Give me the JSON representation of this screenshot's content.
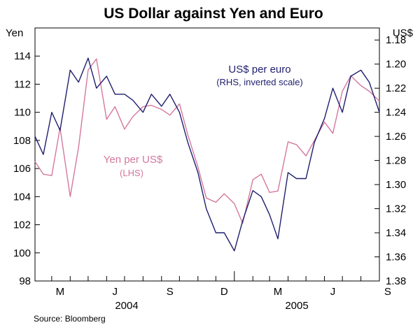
{
  "chart_data": {
    "type": "line",
    "title": "US Dollar against Yen and Euro",
    "source": "Source: Bloomberg",
    "left_axis": {
      "unit": "Yen",
      "min": 98,
      "max": 116,
      "ticks": [
        98,
        100,
        102,
        104,
        106,
        108,
        110,
        112,
        114
      ]
    },
    "right_axis": {
      "unit": "US$",
      "inverted": true,
      "min": 1.17,
      "max": 1.38,
      "ticks": [
        1.18,
        1.2,
        1.22,
        1.24,
        1.26,
        1.28,
        1.3,
        1.32,
        1.34,
        1.36,
        1.38
      ]
    },
    "x_axis": {
      "months": [
        "M",
        "J",
        "S",
        "D",
        "M",
        "J",
        "S"
      ],
      "years": [
        "2004",
        "2005"
      ]
    },
    "grid": false,
    "colors": {
      "yen": "#d4789e",
      "euro": "#1f1f6e"
    },
    "series": [
      {
        "label_main": "Yen per US$",
        "label_sub": "(LHS)",
        "axis": "left",
        "color": "#d4789e",
        "x": [
          "2004-02-02",
          "2004-02-16",
          "2004-03-01",
          "2004-03-15",
          "2004-04-01",
          "2004-04-15",
          "2004-05-01",
          "2004-05-15",
          "2004-06-01",
          "2004-06-15",
          "2004-07-01",
          "2004-07-15",
          "2004-08-01",
          "2004-08-15",
          "2004-09-01",
          "2004-09-15",
          "2004-10-01",
          "2004-10-15",
          "2004-11-01",
          "2004-11-15",
          "2004-12-01",
          "2004-12-15",
          "2005-01-01",
          "2005-01-15",
          "2005-02-01",
          "2005-02-15",
          "2005-03-01",
          "2005-03-15",
          "2005-04-01",
          "2005-04-15",
          "2005-05-01",
          "2005-05-15",
          "2005-06-01",
          "2005-06-15",
          "2005-07-01",
          "2005-07-15",
          "2005-08-01",
          "2005-08-15",
          "2005-09-01"
        ],
        "values": [
          106.5,
          105.6,
          105.5,
          108.9,
          104.0,
          107.5,
          113.0,
          113.8,
          109.5,
          110.4,
          108.8,
          109.7,
          110.4,
          110.5,
          110.2,
          109.8,
          110.6,
          108.4,
          106.1,
          103.9,
          103.6,
          104.2,
          103.5,
          102.1,
          105.2,
          105.6,
          104.3,
          104.4,
          107.9,
          107.7,
          106.9,
          108.0,
          109.3,
          108.5,
          111.5,
          112.6,
          111.9,
          111.5,
          110.8
        ]
      },
      {
        "label_main": "US$ per euro",
        "label_sub": "(RHS, inverted scale)",
        "axis": "right",
        "color": "#1f1f6e",
        "x": [
          "2004-02-02",
          "2004-02-16",
          "2004-03-01",
          "2004-03-15",
          "2004-04-01",
          "2004-04-15",
          "2004-05-01",
          "2004-05-15",
          "2004-06-01",
          "2004-06-15",
          "2004-07-01",
          "2004-07-15",
          "2004-08-01",
          "2004-08-15",
          "2004-09-01",
          "2004-09-15",
          "2004-10-01",
          "2004-10-15",
          "2004-11-01",
          "2004-11-15",
          "2004-12-01",
          "2004-12-15",
          "2005-01-01",
          "2005-01-15",
          "2005-02-01",
          "2005-02-15",
          "2005-03-01",
          "2005-03-15",
          "2005-04-01",
          "2005-04-15",
          "2005-05-01",
          "2005-05-15",
          "2005-06-01",
          "2005-06-15",
          "2005-07-01",
          "2005-07-15",
          "2005-08-01",
          "2005-08-15",
          "2005-09-01"
        ],
        "values": [
          1.26,
          1.275,
          1.24,
          1.255,
          1.205,
          1.215,
          1.195,
          1.22,
          1.21,
          1.225,
          1.225,
          1.23,
          1.24,
          1.225,
          1.235,
          1.225,
          1.24,
          1.265,
          1.29,
          1.32,
          1.34,
          1.34,
          1.355,
          1.33,
          1.305,
          1.31,
          1.325,
          1.345,
          1.29,
          1.295,
          1.295,
          1.265,
          1.245,
          1.22,
          1.24,
          1.21,
          1.205,
          1.215,
          1.24
        ]
      }
    ]
  }
}
